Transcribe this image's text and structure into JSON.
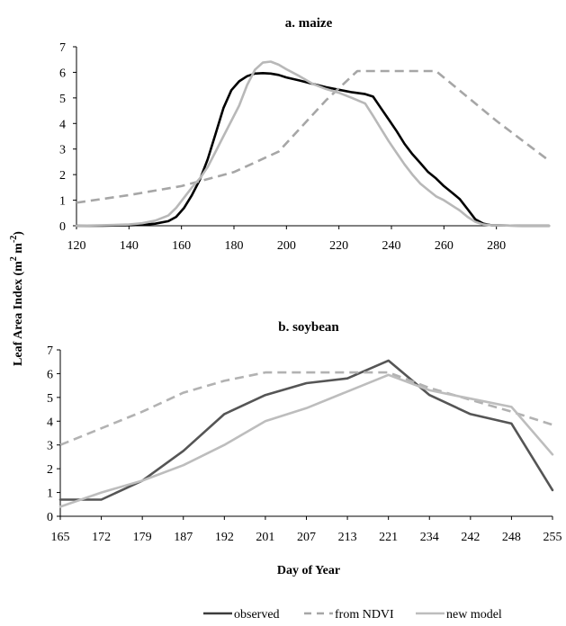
{
  "figure": {
    "ylabel": "Leaf Area Index (m",
    "ylabel_sup1": "2",
    "ylabel_mid": " m",
    "ylabel_sup2": "-2",
    "ylabel_end": ")",
    "xlabel": "Day of Year"
  },
  "legend": [
    {
      "label": "observed",
      "color": "#3c3c3c",
      "dash": "solid"
    },
    {
      "label": "from NDVI",
      "color": "#a6a6a6",
      "dash": "dashed"
    },
    {
      "label": "new model",
      "color": "#bdbdbd",
      "dash": "solid"
    }
  ],
  "chart_data": [
    {
      "type": "line",
      "title": "a. maize",
      "xlim": [
        120,
        300
      ],
      "ylim": [
        0,
        7
      ],
      "xticks": [
        120,
        140,
        160,
        180,
        200,
        220,
        240,
        260,
        280
      ],
      "yticks": [
        0,
        1,
        2,
        3,
        4,
        5,
        6,
        7
      ],
      "grid": false,
      "series": [
        {
          "name": "observed",
          "color": "#000000",
          "dash": "solid",
          "x": [
            120,
            130,
            140,
            145,
            150,
            155,
            158,
            161,
            164,
            167,
            170,
            173,
            176,
            179,
            182,
            185,
            188,
            191,
            194,
            197,
            200,
            205,
            210,
            215,
            220,
            225,
            230,
            233,
            236,
            239,
            242,
            245,
            248,
            251,
            254,
            257,
            260,
            263,
            266,
            269,
            272,
            275,
            278,
            290,
            300
          ],
          "y": [
            0,
            0,
            0.02,
            0.04,
            0.08,
            0.18,
            0.35,
            0.7,
            1.2,
            1.8,
            2.6,
            3.6,
            4.6,
            5.3,
            5.65,
            5.85,
            5.95,
            5.97,
            5.95,
            5.9,
            5.8,
            5.68,
            5.55,
            5.42,
            5.32,
            5.22,
            5.15,
            5.05,
            4.6,
            4.15,
            3.7,
            3.2,
            2.8,
            2.45,
            2.1,
            1.85,
            1.55,
            1.3,
            1.05,
            0.65,
            0.25,
            0.08,
            0.02,
            0,
            0
          ]
        },
        {
          "name": "from NDVI",
          "color": "#a6a6a6",
          "dash": "dashed",
          "x": [
            120,
            140,
            160,
            180,
            197,
            215,
            227,
            240,
            257,
            280,
            300
          ],
          "y": [
            0.9,
            1.2,
            1.55,
            2.1,
            2.9,
            4.9,
            6.05,
            6.05,
            6.05,
            4.1,
            2.55
          ]
        },
        {
          "name": "new model",
          "color": "#b8b8b8",
          "dash": "solid",
          "x": [
            120,
            130,
            140,
            145,
            150,
            155,
            158,
            161,
            164,
            167,
            170,
            173,
            176,
            179,
            182,
            185,
            188,
            191,
            194,
            197,
            200,
            205,
            210,
            215,
            220,
            225,
            230,
            233,
            236,
            239,
            242,
            245,
            248,
            251,
            254,
            257,
            260,
            263,
            266,
            269,
            272,
            275,
            278,
            290,
            300
          ],
          "y": [
            0,
            0.02,
            0.05,
            0.1,
            0.2,
            0.4,
            0.7,
            1.1,
            1.5,
            1.85,
            2.3,
            2.9,
            3.5,
            4.1,
            4.7,
            5.5,
            6.1,
            6.38,
            6.42,
            6.3,
            6.12,
            5.85,
            5.55,
            5.35,
            5.2,
            5.0,
            4.78,
            4.3,
            3.8,
            3.3,
            2.85,
            2.4,
            2.0,
            1.65,
            1.4,
            1.15,
            1.0,
            0.8,
            0.6,
            0.35,
            0.15,
            0.05,
            0.02,
            0,
            0
          ]
        }
      ]
    },
    {
      "type": "line",
      "title": "b. soybean",
      "categories": [
        "165",
        "172",
        "179",
        "187",
        "192",
        "201",
        "207",
        "213",
        "221",
        "234",
        "242",
        "248",
        "255"
      ],
      "ylim": [
        0,
        7
      ],
      "yticks": [
        0,
        1,
        2,
        3,
        4,
        5,
        6,
        7
      ],
      "grid": false,
      "series": [
        {
          "name": "observed",
          "color": "#555555",
          "dash": "solid",
          "values": [
            0.7,
            0.7,
            1.5,
            2.75,
            4.3,
            5.1,
            5.6,
            5.8,
            6.55,
            5.1,
            4.3,
            3.9,
            1.1
          ]
        },
        {
          "name": "from NDVI",
          "color": "#b2b2b2",
          "dash": "dashed",
          "values": [
            3.0,
            3.7,
            4.4,
            5.2,
            5.7,
            6.05,
            6.05,
            6.05,
            6.05,
            5.4,
            4.9,
            4.4,
            3.85
          ]
        },
        {
          "name": "new model",
          "color": "#bdbdbd",
          "dash": "solid",
          "values": [
            0.4,
            1.0,
            1.5,
            2.15,
            3.0,
            4.0,
            4.55,
            5.25,
            5.95,
            5.3,
            4.95,
            4.6,
            2.6
          ]
        }
      ]
    }
  ]
}
